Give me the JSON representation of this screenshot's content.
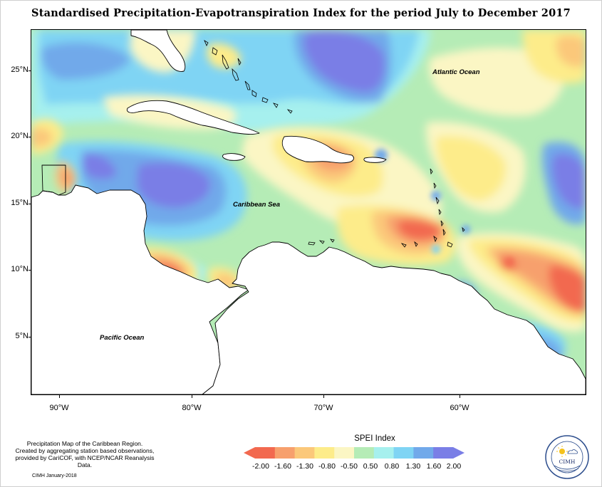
{
  "title": "Standardised Precipitation-Evapotranspiration Index for the period July to December 2017",
  "map": {
    "y_axis_labels": [
      "25°N",
      "20°N",
      "15°N",
      "10°N",
      "5°N"
    ],
    "x_axis_labels": [
      "90°W",
      "80°W",
      "70°W",
      "60°W"
    ],
    "place_labels": {
      "atlantic": "Atlantic Ocean",
      "caribbean": "Caribbean Sea",
      "pacific": "Pacific Ocean"
    }
  },
  "footer": {
    "description_line1": "Precipitation Map of the Caribbean Region.",
    "description_line2": "Created by aggregating station based observations,",
    "description_line3": "provided by CariCOF, with NCEP/NCAR Reanalysis Data.",
    "credit": "CIMH January-2018"
  },
  "legend": {
    "title": "SPEI Index",
    "labels": [
      "-2.00",
      "-1.60",
      "-1.30",
      "-0.80",
      "-0.50",
      "0.50",
      "0.80",
      "1.30",
      "1.60",
      "2.00"
    ],
    "colors": [
      "#f2694f",
      "#f7a06d",
      "#fbc87a",
      "#fdec8a",
      "#fbf6c4",
      "#b5ecb6",
      "#a6f0ee",
      "#7fd4f4",
      "#71a9ea",
      "#7a7ee6"
    ]
  },
  "logo": {
    "text": "CIMH",
    "icon": "sun-cloud-icon"
  }
}
